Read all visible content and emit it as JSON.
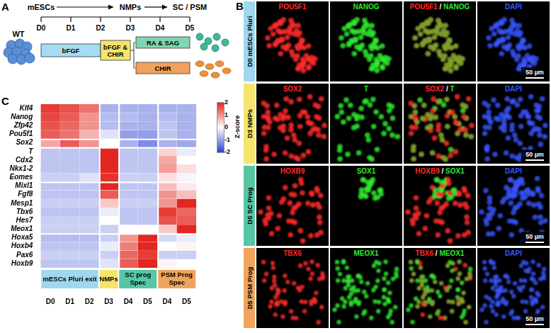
{
  "panel_a": {
    "letter": "A",
    "genotype": "WT",
    "stages": [
      "mESCs",
      "NMPs",
      "SC / PSM"
    ],
    "days": [
      "D0",
      "D1",
      "D2",
      "D3",
      "D4",
      "D5"
    ],
    "media": [
      {
        "label": "bFGF",
        "color": "#a6dcf2"
      },
      {
        "label": "bFGF & CHIR",
        "color": "#f5e56b"
      },
      {
        "label": "RA & SAG",
        "color": "#7fd6b0"
      },
      {
        "label": "CHIR",
        "color": "#f2a25b"
      }
    ]
  },
  "panel_b": {
    "letter": "B",
    "rows": [
      {
        "label": "D0 mESCs Pluri",
        "color": "#9ed7ee",
        "scale_bar": "50 µm",
        "channels": [
          {
            "label": "POU5F1",
            "color": "#ff2a2a"
          },
          {
            "label": "NANOG",
            "color": "#2ee82e"
          },
          {
            "label": "POU5F1 / NANOG"
          },
          {
            "label": "DAPI",
            "color": "#3a55ff"
          }
        ]
      },
      {
        "label": "D3 NMPs",
        "color": "#f4e46c",
        "scale_bar": "50 µm",
        "channels": [
          {
            "label": "SOX2",
            "color": "#ff2a2a"
          },
          {
            "label": "T",
            "color": "#2ee82e"
          },
          {
            "label": "SOX2 / T"
          },
          {
            "label": "DAPI",
            "color": "#3a55ff"
          }
        ]
      },
      {
        "label": "D5 SC Prog",
        "color": "#56c6a4",
        "scale_bar": "50 µm",
        "channels": [
          {
            "label": "HOXB9",
            "color": "#ff2a2a"
          },
          {
            "label": "SOX1",
            "color": "#2ee82e"
          },
          {
            "label": "HOXB9 / SOX1"
          },
          {
            "label": "DAPI",
            "color": "#3a55ff"
          }
        ]
      },
      {
        "label": "D5 PSM Prog",
        "color": "#f0a35c",
        "scale_bar": "50 µm",
        "channels": [
          {
            "label": "TBX6",
            "color": "#ff2a2a"
          },
          {
            "label": "MEOX1",
            "color": "#2ee82e"
          },
          {
            "label": "TBX6 / MEOX1"
          },
          {
            "label": "DAPI",
            "color": "#3a55ff"
          }
        ]
      }
    ]
  },
  "chart_data": {
    "type": "heatmap",
    "letter": "C",
    "row_groups": [
      [
        "Klf4",
        "Nanog",
        "Zfp42",
        "Pou5f1"
      ],
      [
        "Sox2"
      ],
      [
        "T",
        "Cdx2",
        "Nkx1-2",
        "Eomes"
      ],
      [
        "Mixl1",
        "Fgf8",
        "Mesp1",
        "Tbx6",
        "Hes7",
        "Meox1"
      ],
      [
        "Hoxa5",
        "Hoxb4",
        "Pax6",
        "Hoxb9"
      ]
    ],
    "column_groups": [
      {
        "label": "mESCs Pluri exit",
        "color": "#9ed7ee",
        "days": [
          "D0",
          "D1",
          "D2"
        ]
      },
      {
        "label": "NMPs",
        "color": "#f4e46c",
        "days": [
          "D3"
        ]
      },
      {
        "label": "SC prog Spec",
        "color": "#56c6a4",
        "days": [
          "D4",
          "D5"
        ]
      },
      {
        "label": "PSM Prog Spec",
        "color": "#f0a35c",
        "days": [
          "D4",
          "D5"
        ]
      }
    ],
    "cells": [
      [
        1.8,
        1.6,
        1.3,
        -0.8,
        -0.8,
        -0.8,
        -0.8,
        -0.8
      ],
      [
        1.7,
        1.5,
        1.0,
        -0.7,
        -0.7,
        -0.8,
        -0.7,
        -0.8
      ],
      [
        1.6,
        1.4,
        1.0,
        -0.7,
        -0.8,
        -0.8,
        -0.6,
        -0.8
      ],
      [
        1.5,
        1.3,
        0.7,
        -0.3,
        -1.0,
        -1.0,
        -0.6,
        -0.8
      ],
      [
        0.8,
        1.5,
        1.0,
        0.0,
        -0.8,
        -1.2,
        -0.8,
        -0.9
      ],
      [
        -0.6,
        -0.6,
        -0.6,
        2.3,
        -0.6,
        -0.6,
        0.4,
        -0.2
      ],
      [
        -0.6,
        -0.6,
        -0.6,
        2.1,
        -0.6,
        -0.6,
        0.8,
        0.0
      ],
      [
        -0.6,
        -0.6,
        -0.6,
        2.0,
        -0.6,
        -0.6,
        0.9,
        0.3
      ],
      [
        -0.5,
        -0.5,
        -0.3,
        1.9,
        -0.5,
        -0.5,
        0.3,
        -0.1
      ],
      [
        -0.6,
        -0.6,
        -0.6,
        2.2,
        -0.6,
        -0.6,
        0.6,
        0.2
      ],
      [
        -0.6,
        -0.6,
        -0.6,
        1.5,
        -0.6,
        -0.6,
        1.0,
        0.6
      ],
      [
        -0.5,
        -0.5,
        -0.5,
        0.5,
        -0.5,
        -0.5,
        1.0,
        2.0
      ],
      [
        -0.6,
        -0.6,
        -0.6,
        -0.2,
        -0.6,
        -0.6,
        1.8,
        1.4
      ],
      [
        -0.5,
        -0.5,
        -0.5,
        0.0,
        -0.6,
        -0.6,
        1.6,
        1.5
      ],
      [
        -0.5,
        -0.5,
        -0.5,
        -0.5,
        0.0,
        0.0,
        0.5,
        2.2
      ],
      [
        -0.7,
        -0.7,
        -0.7,
        -0.5,
        1.0,
        2.0,
        -0.4,
        -0.2
      ],
      [
        -0.6,
        -0.6,
        -0.6,
        -0.2,
        1.2,
        2.1,
        0.0,
        0.1
      ],
      [
        -0.5,
        -0.5,
        -0.5,
        -0.5,
        1.4,
        1.8,
        -0.5,
        -0.5
      ],
      [
        -0.6,
        -0.6,
        -0.6,
        -0.3,
        1.5,
        2.0,
        0.1,
        0.0
      ]
    ],
    "colorbar": {
      "label": "Z-score",
      "range": [
        -2,
        2
      ],
      "ticks": [
        2,
        1,
        0,
        -1,
        -2
      ],
      "colors": [
        "#2b3fd0",
        "#ffffff",
        "#e3261f"
      ]
    }
  }
}
